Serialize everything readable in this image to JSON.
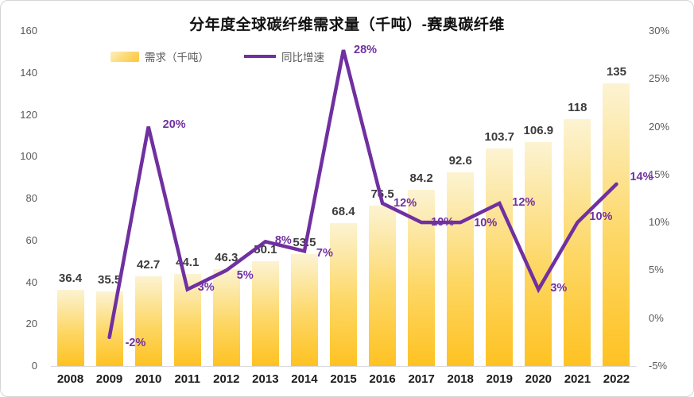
{
  "title": "分年度全球碳纤维需求量（千吨）-赛奥碳纤维",
  "legend": {
    "demand_label": "需求（千吨）",
    "growth_label": "同比增速"
  },
  "colors": {
    "bar_gradient_top": "#FCF3D2",
    "bar_gradient_mid": "#FDD765",
    "bar_gradient_bottom": "#FEC222",
    "line": "#7030A0",
    "bar_value_label": "#3B3B3B",
    "axis_tick": "#595959",
    "x_tick": "#1A1A1A",
    "baseline": "#D9D9D9",
    "title": "#111111"
  },
  "chart_data": {
    "type": "bar",
    "title": "分年度全球碳纤维需求量（千吨）-赛奥碳纤维",
    "categories": [
      "2008",
      "2009",
      "2010",
      "2011",
      "2012",
      "2013",
      "2014",
      "2015",
      "2016",
      "2017",
      "2018",
      "2019",
      "2020",
      "2021",
      "2022"
    ],
    "series": [
      {
        "name": "需求（千吨）",
        "type": "bar",
        "axis": "left",
        "values": [
          36.4,
          35.5,
          42.7,
          44.1,
          46.3,
          50.1,
          53.5,
          68.4,
          76.5,
          84.2,
          92.6,
          103.7,
          106.9,
          118,
          135
        ],
        "labels": [
          "36.4",
          "35.5",
          "42.7",
          "44.1",
          "46.3",
          "50.1",
          "53.5",
          "68.4",
          "76.5",
          "84.2",
          "92.6",
          "103.7",
          "106.9",
          "118",
          "135"
        ]
      },
      {
        "name": "同比增速",
        "type": "line",
        "axis": "right",
        "values": [
          null,
          -2,
          20,
          3,
          5,
          8,
          7,
          28,
          12,
          10,
          10,
          12,
          3,
          10,
          14
        ],
        "labels": [
          null,
          "-2%",
          "20%",
          "3%",
          "5%",
          "8%",
          "7%",
          "28%",
          "12%",
          "10%",
          "10%",
          "12%",
          "3%",
          "10%",
          "14%"
        ]
      }
    ],
    "left_axis": {
      "min": 0,
      "max": 160,
      "tick_step": 20,
      "ticks": [
        "0",
        "20",
        "40",
        "60",
        "80",
        "100",
        "120",
        "140",
        "160"
      ]
    },
    "right_axis": {
      "min": -5,
      "max": 30,
      "tick_step": 5,
      "ticks": [
        "-5%",
        "0%",
        "5%",
        "10%",
        "15%",
        "20%",
        "25%",
        "30%"
      ]
    },
    "grid": false,
    "legend_position": "top-left",
    "line_label_offsets": [
      null,
      [
        20,
        7
      ],
      [
        18,
        -3
      ],
      [
        13,
        -3
      ],
      [
        13,
        7
      ],
      [
        12,
        -1
      ],
      [
        15,
        3
      ],
      [
        13,
        0
      ],
      [
        14,
        0
      ],
      [
        12,
        0
      ],
      [
        17,
        1
      ],
      [
        16,
        -1
      ],
      [
        15,
        -2
      ],
      [
        15,
        -7
      ],
      [
        17,
        -9
      ]
    ]
  }
}
